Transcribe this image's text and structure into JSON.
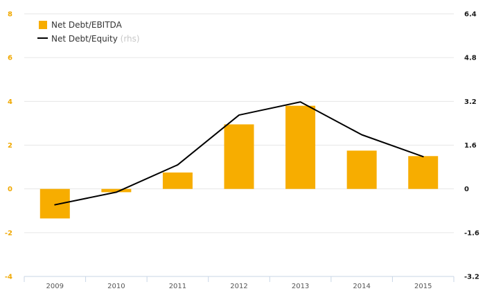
{
  "chart_data": {
    "type": "bar",
    "categories": [
      "2009",
      "2010",
      "2011",
      "2012",
      "2013",
      "2014",
      "2015"
    ],
    "series": [
      {
        "name": "Net Debt/EBITDA",
        "type": "bar",
        "axis": "left",
        "values": [
          -1.35,
          -0.15,
          0.75,
          2.95,
          3.8,
          1.75,
          1.5
        ]
      },
      {
        "name": "Net Debt/Equity",
        "type": "line",
        "axis": "right",
        "values": [
          -0.58,
          -0.12,
          0.88,
          2.7,
          3.18,
          1.98,
          1.18
        ]
      }
    ],
    "legend_suffix": "(rhs)",
    "y_left": {
      "range": [
        -4,
        8
      ],
      "ticks": [
        "-4",
        "-2",
        "0",
        "2",
        "4",
        "6",
        "8"
      ]
    },
    "y_right": {
      "range": [
        -3.2,
        6.4
      ],
      "ticks": [
        "-3.2",
        "-1.6",
        "0",
        "1.6",
        "3.2",
        "4.8",
        "6.4"
      ]
    },
    "grid": true,
    "legend_position": "top-left",
    "colors": {
      "bar": "#f7ad00",
      "line": "#000000",
      "left_axis": "#f0a800",
      "right_axis": "#1a1a1a",
      "grid": "#e6e6e6",
      "x_axis": "#c8d6e6"
    }
  }
}
